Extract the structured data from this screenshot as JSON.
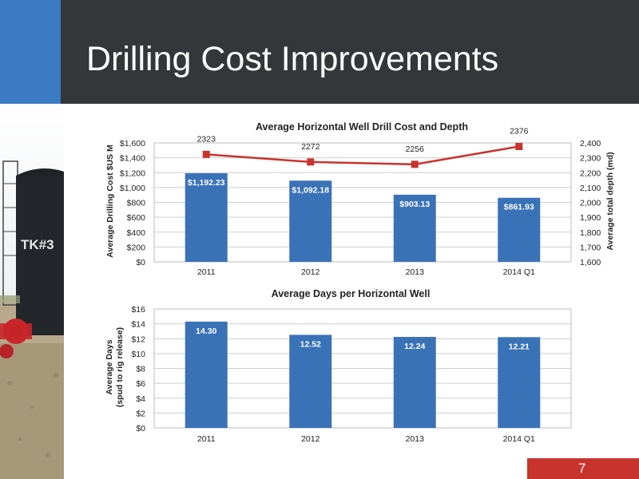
{
  "slide": {
    "title": "Drilling Cost Improvements",
    "page_number": "7",
    "photo_label": "TK#3"
  },
  "colors": {
    "header_bg": "#34363a",
    "accent_blue": "#3b7bc4",
    "bar_blue": "#3a72b8",
    "line_red": "#c8342d",
    "footer_red": "#c8342d"
  },
  "chart_data": [
    {
      "type": "bar",
      "title": "Average Horizontal Well Drill Cost and Depth",
      "categories": [
        "2011",
        "2012",
        "2013",
        "2014 Q1"
      ],
      "series": [
        {
          "type": "bar",
          "axis": "left",
          "values": [
            1192.23,
            1092.18,
            903.13,
            861.93
          ],
          "labels": [
            "$1,192.23",
            "$1,092.18",
            "$903.13",
            "$861.93"
          ]
        },
        {
          "type": "line",
          "axis": "right",
          "values": [
            2323,
            2272,
            2256,
            2376
          ],
          "labels": [
            "2323",
            "2272",
            "2256",
            "2376"
          ]
        }
      ],
      "ylabel": "Average Drilling Cost $US M",
      "ylabel_right": "Average total depth (md)",
      "ylim": [
        0,
        1600
      ],
      "ylim_right": [
        1600,
        2400
      ],
      "yticks": [
        "$0",
        "$200",
        "$400",
        "$600",
        "$800",
        "$1,000",
        "$1,200",
        "$1,400",
        "$1,600"
      ],
      "yticks_right": [
        "1,600",
        "1,700",
        "1,800",
        "1,900",
        "2,000",
        "2,100",
        "2,200",
        "2,300",
        "2,400"
      ],
      "grid": true
    },
    {
      "type": "bar",
      "title": "Average Days per Horizontal Well",
      "categories": [
        "2011",
        "2012",
        "2013",
        "2014 Q1"
      ],
      "series": [
        {
          "values": [
            14.3,
            12.52,
            12.24,
            12.21
          ],
          "labels": [
            "14.30",
            "12.52",
            "12.24",
            "12.21"
          ]
        }
      ],
      "ylabel": "Average Days",
      "ylabel2": "(spud to rig release)",
      "ylim": [
        0,
        16
      ],
      "yticks": [
        "$0",
        "$2",
        "$4",
        "$6",
        "$8",
        "$10",
        "$12",
        "$14",
        "$16"
      ],
      "grid": true
    }
  ]
}
